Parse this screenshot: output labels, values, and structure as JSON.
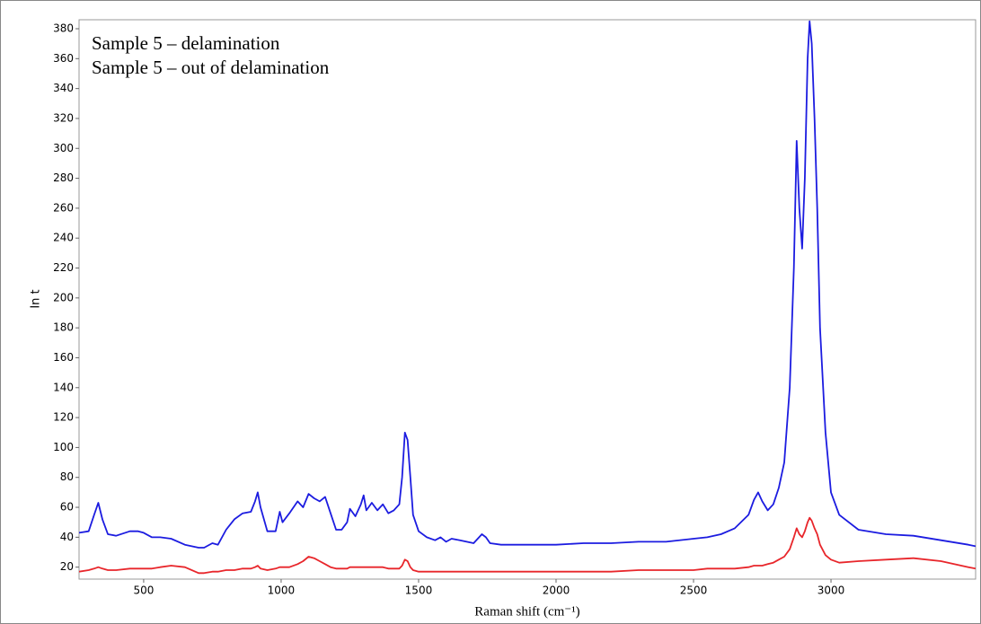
{
  "chart_data": {
    "type": "line",
    "x_label": "Raman shift (cm⁻¹)",
    "y_label": "In t",
    "xlim": [
      265,
      3526
    ],
    "ylim": [
      12,
      386
    ],
    "xticks": [
      500,
      1000,
      1500,
      2000,
      2500,
      3000
    ],
    "yticks": [
      20,
      40,
      60,
      80,
      100,
      120,
      140,
      160,
      180,
      200,
      220,
      240,
      260,
      280,
      300,
      320,
      340,
      360,
      380
    ],
    "grid": false,
    "legend": "top-left",
    "x": [
      265,
      300,
      320,
      335,
      350,
      370,
      400,
      450,
      480,
      500,
      530,
      560,
      600,
      650,
      700,
      720,
      750,
      770,
      800,
      830,
      860,
      890,
      905,
      915,
      925,
      950,
      980,
      995,
      1005,
      1030,
      1060,
      1080,
      1100,
      1120,
      1140,
      1160,
      1180,
      1200,
      1220,
      1240,
      1250,
      1270,
      1290,
      1300,
      1310,
      1330,
      1350,
      1370,
      1390,
      1410,
      1430,
      1440,
      1450,
      1460,
      1470,
      1480,
      1500,
      1530,
      1560,
      1580,
      1600,
      1620,
      1650,
      1700,
      1730,
      1745,
      1760,
      1800,
      1900,
      2000,
      2100,
      2200,
      2300,
      2400,
      2500,
      2550,
      2600,
      2650,
      2700,
      2720,
      2735,
      2750,
      2770,
      2790,
      2810,
      2830,
      2850,
      2865,
      2875,
      2885,
      2895,
      2905,
      2915,
      2922,
      2930,
      2940,
      2950,
      2960,
      2980,
      3000,
      3030,
      3100,
      3200,
      3300,
      3400,
      3500,
      3526
    ],
    "series": [
      {
        "name": "Sample 5 – delamination",
        "color": "#e8262b",
        "values": [
          17,
          18,
          19,
          20,
          19,
          18,
          18,
          19,
          19,
          19,
          19,
          20,
          21,
          20,
          16,
          16,
          17,
          17,
          18,
          18,
          19,
          19,
          20,
          21,
          19,
          18,
          19,
          20,
          20,
          20,
          22,
          24,
          27,
          26,
          24,
          22,
          20,
          19,
          19,
          19,
          20,
          20,
          20,
          20,
          20,
          20,
          20,
          20,
          19,
          19,
          19,
          21,
          25,
          24,
          20,
          18,
          17,
          17,
          17,
          17,
          17,
          17,
          17,
          17,
          17,
          17,
          17,
          17,
          17,
          17,
          17,
          17,
          18,
          18,
          18,
          19,
          19,
          19,
          20,
          21,
          21,
          21,
          22,
          23,
          25,
          27,
          32,
          40,
          46,
          42,
          40,
          44,
          50,
          53,
          51,
          46,
          42,
          35,
          28,
          25,
          23,
          24,
          25,
          26,
          24,
          20,
          19
        ]
      },
      {
        "name": "Sample 5 – out of delamination",
        "color": "#1c1ce0",
        "values": [
          43,
          44,
          55,
          63,
          52,
          42,
          41,
          44,
          44,
          43,
          40,
          40,
          39,
          35,
          33,
          33,
          36,
          35,
          45,
          52,
          56,
          57,
          64,
          70,
          60,
          44,
          44,
          57,
          50,
          56,
          64,
          60,
          69,
          66,
          64,
          67,
          56,
          45,
          45,
          50,
          59,
          54,
          62,
          68,
          58,
          63,
          58,
          62,
          56,
          58,
          62,
          80,
          110,
          105,
          80,
          55,
          44,
          40,
          38,
          40,
          37,
          39,
          38,
          36,
          42,
          40,
          36,
          35,
          35,
          35,
          36,
          36,
          37,
          37,
          39,
          40,
          42,
          46,
          55,
          65,
          70,
          64,
          58,
          62,
          73,
          90,
          140,
          220,
          305,
          260,
          233,
          280,
          360,
          385,
          370,
          320,
          260,
          180,
          110,
          70,
          55,
          45,
          42,
          41,
          38,
          35,
          34
        ]
      }
    ]
  }
}
